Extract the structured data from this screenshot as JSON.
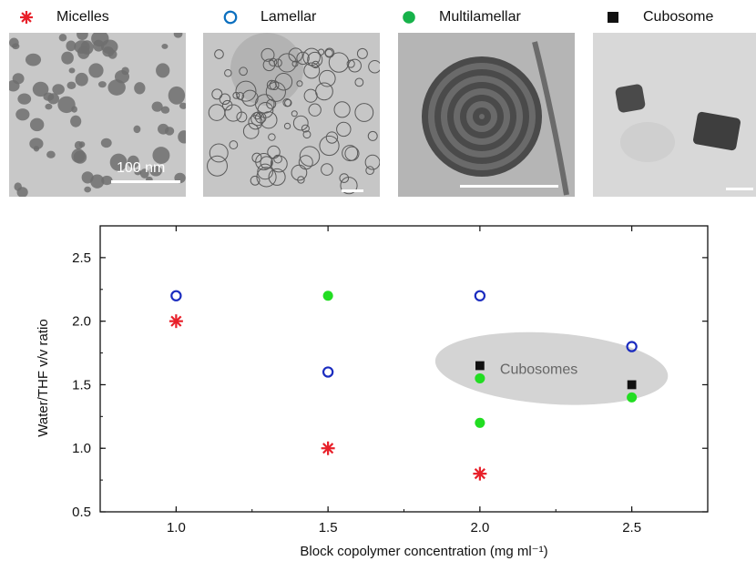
{
  "legend": [
    {
      "label": "Micelles",
      "marker": "asterisk",
      "color": "#e8202a"
    },
    {
      "label": "Lamellar",
      "marker": "open-circle",
      "color": "#0b6fbf"
    },
    {
      "label": "Multilamellar",
      "marker": "filled-circle",
      "color": "#17b24a"
    },
    {
      "label": "Cubosome",
      "marker": "filled-square",
      "color": "#111111"
    }
  ],
  "micrographs": [
    {
      "name": "micelles-micrograph",
      "scale_bar_label": "100 nm"
    },
    {
      "name": "lamellar-micrograph",
      "scale_bar_label": ""
    },
    {
      "name": "multilamellar-micrograph",
      "scale_bar_label": ""
    },
    {
      "name": "cubosome-micrograph",
      "scale_bar_label": ""
    }
  ],
  "chart_data": {
    "type": "scatter",
    "xlabel": "Block copolymer concentration (mg ml⁻¹)",
    "ylabel": "Water/THF v/v ratio",
    "xlim": [
      0.75,
      2.75
    ],
    "ylim": [
      0.5,
      2.75
    ],
    "xticks": [
      "1.0",
      "1.5",
      "2.0",
      "2.5"
    ],
    "yticks": [
      "0.5",
      "1.0",
      "1.5",
      "2.0",
      "2.5"
    ],
    "grid": false,
    "series": [
      {
        "name": "Micelles",
        "marker": "asterisk",
        "color": "#e8202a",
        "points": [
          [
            1.0,
            2.0
          ],
          [
            1.5,
            1.0
          ],
          [
            2.0,
            0.8
          ]
        ]
      },
      {
        "name": "Lamellar",
        "marker": "open-circle",
        "color": "#1a2bbf",
        "points": [
          [
            1.0,
            2.2
          ],
          [
            1.5,
            1.6
          ],
          [
            2.0,
            2.2
          ],
          [
            2.5,
            1.8
          ]
        ]
      },
      {
        "name": "Multilamellar",
        "marker": "filled-circle",
        "color": "#22dd22",
        "points": [
          [
            1.5,
            2.2
          ],
          [
            2.0,
            1.55
          ],
          [
            2.0,
            1.2
          ],
          [
            2.5,
            1.4
          ]
        ]
      },
      {
        "name": "Cubosome",
        "marker": "filled-square",
        "color": "#111111",
        "points": [
          [
            2.0,
            1.65
          ],
          [
            2.5,
            1.5
          ]
        ]
      }
    ],
    "annotations": [
      {
        "text": "Cubosomes",
        "x": 2.23,
        "y": 1.57,
        "region_color": "#d4d4d4"
      }
    ]
  }
}
